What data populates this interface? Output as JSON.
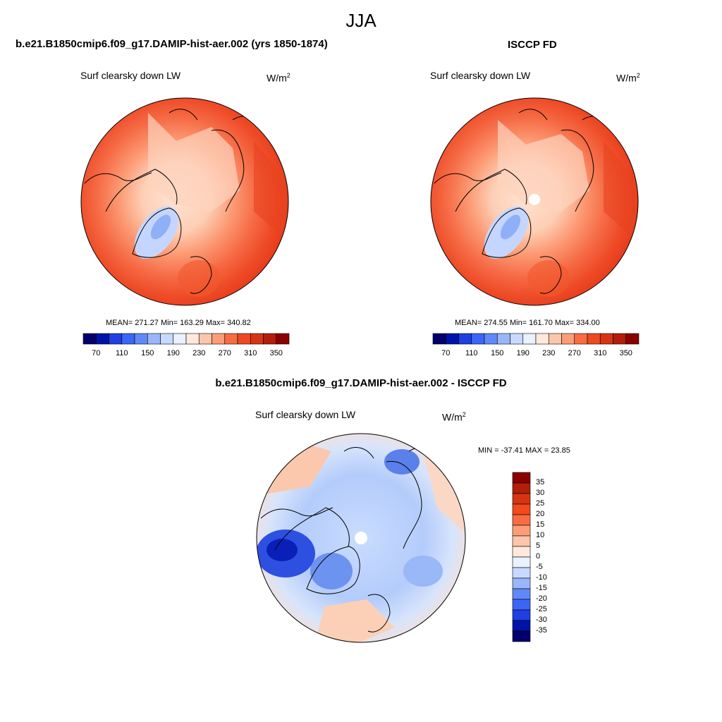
{
  "figure": {
    "season_title": "JJA",
    "colors": {
      "blue_darkest": "#03006b",
      "blue_mid": "#3366ff",
      "blue_light": "#c7d9ff",
      "neutral": "#ffffff",
      "red_light": "#ffd9c2",
      "red_mid": "#ff6a33",
      "red_darkest": "#8a0000"
    }
  },
  "panel_model": {
    "title": "b.e21.B1850cmip6.f09_g17.DAMIP-hist-aer.002 (yrs 1850-1874)",
    "variable": "Surf clearsky down LW",
    "unit_base": "W/m",
    "unit_exp": "2",
    "stats": "MEAN= 271.27  Min= 163.29  Max= 340.82",
    "colorbar_labels": [
      "70",
      "110",
      "150",
      "190",
      "230",
      "270",
      "310",
      "350"
    ],
    "map_projection": "north-polar-stereographic"
  },
  "panel_obs": {
    "title": "ISCCP FD",
    "variable": "Surf clearsky down LW",
    "unit_base": "W/m",
    "unit_exp": "2",
    "stats": "MEAN= 274.55  Min= 161.70  Max= 334.00",
    "colorbar_labels": [
      "70",
      "110",
      "150",
      "190",
      "230",
      "270",
      "310",
      "350"
    ],
    "map_projection": "north-polar-stereographic"
  },
  "panel_diff": {
    "title": "b.e21.B1850cmip6.f09_g17.DAMIP-hist-aer.002 - ISCCP FD",
    "variable": "Surf clearsky down LW",
    "unit_base": "W/m",
    "unit_exp": "2",
    "stats": "MIN = -37.41 MAX =  23.85",
    "colorbar_labels": [
      "35",
      "30",
      "25",
      "20",
      "15",
      "10",
      "5",
      "0",
      "-5",
      "-10",
      "-15",
      "-20",
      "-25",
      "-30",
      "-35"
    ],
    "map_projection": "north-polar-stereographic"
  }
}
